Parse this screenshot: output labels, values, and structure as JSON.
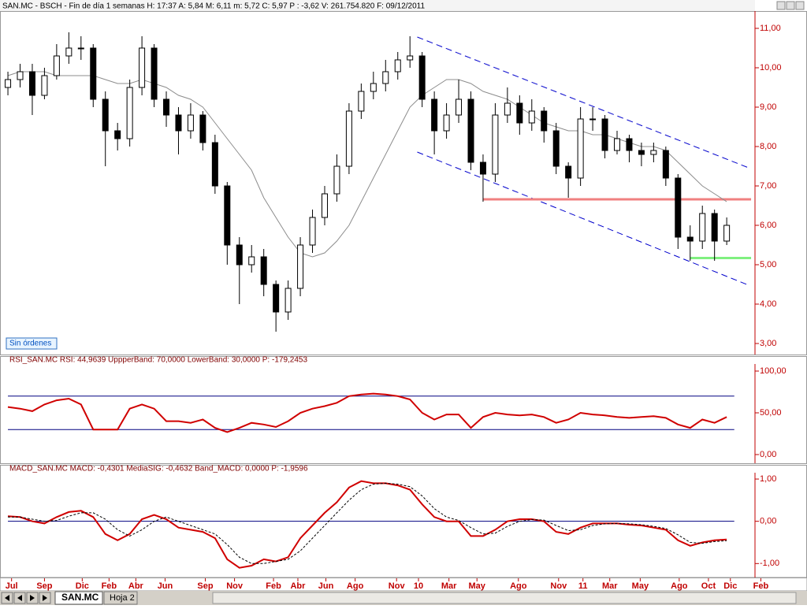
{
  "header": "SAN.MC - BSCH - Fin de día 1 semanas  H: 17:37  A: 5,84  M: 6,11  m: 5,72  C: 5,97  P : -3,62  V: 261.754.820  F: 09/12/2011",
  "status": "Sin órdenes",
  "tabs": [
    "SAN.MC",
    "Hoja 2"
  ],
  "x_axis": {
    "xlim": [
      -0.65,
      61.32
    ],
    "xticks": [
      {
        "value": 0.3,
        "label": "Jul"
      },
      {
        "value": 3,
        "label": "Sep"
      },
      {
        "value": 6.1,
        "label": "Dic"
      },
      {
        "value": 8.3,
        "label": "Feb"
      },
      {
        "value": 10.5,
        "label": "Abr"
      },
      {
        "value": 12.9,
        "label": "Jun"
      },
      {
        "value": 16.2,
        "label": "Sep"
      },
      {
        "value": 18.6,
        "label": "Nov"
      },
      {
        "value": 21.8,
        "label": "Feb"
      },
      {
        "value": 23.8,
        "label": "Abr"
      },
      {
        "value": 26.1,
        "label": "Jun"
      },
      {
        "value": 28.5,
        "label": "Ago"
      },
      {
        "value": 31.9,
        "label": "Nov"
      },
      {
        "value": 33.7,
        "label": "10"
      },
      {
        "value": 36.2,
        "label": "Mar"
      },
      {
        "value": 38.5,
        "label": "May"
      },
      {
        "value": 41.9,
        "label": "Ago"
      },
      {
        "value": 45.2,
        "label": "Nov"
      },
      {
        "value": 47.2,
        "label": "11"
      },
      {
        "value": 49.4,
        "label": "Mar"
      },
      {
        "value": 51.9,
        "label": "May"
      },
      {
        "value": 55.1,
        "label": "Ago"
      },
      {
        "value": 57.5,
        "label": "Oct"
      },
      {
        "value": 59.3,
        "label": "Dic"
      },
      {
        "value": 61.8,
        "label": "Feb"
      }
    ]
  },
  "chart_data": [
    {
      "type": "candlestick",
      "open": [
        9.5,
        9.7,
        9.9,
        9.3,
        9.8,
        10.3,
        10.5,
        10.5,
        9.2,
        8.4,
        8.2,
        9.5,
        10.5,
        9.2,
        8.8,
        8.4,
        8.8,
        8.1,
        7.0,
        5.5,
        5.0,
        5.2,
        4.5,
        3.8,
        4.4,
        5.5,
        6.2,
        6.8,
        7.5,
        8.9,
        9.4,
        9.6,
        9.9,
        10.2,
        10.3,
        9.2,
        8.4,
        8.8,
        9.2,
        7.6,
        7.3,
        8.8,
        9.1,
        8.6,
        8.9,
        8.4,
        7.5,
        7.2,
        8.7,
        8.7,
        7.9,
        8.2,
        7.9,
        7.8,
        7.9,
        7.2,
        5.7,
        5.6,
        6.3,
        5.6
      ],
      "high": [
        9.9,
        10.1,
        10.1,
        10.0,
        10.6,
        10.9,
        10.8,
        10.6,
        9.4,
        8.6,
        9.7,
        10.8,
        10.6,
        9.4,
        9.0,
        9.1,
        8.9,
        8.3,
        7.1,
        5.7,
        5.5,
        5.4,
        4.6,
        4.6,
        5.7,
        6.4,
        7.0,
        7.8,
        9.1,
        9.6,
        9.9,
        10.2,
        10.4,
        10.8,
        10.4,
        9.4,
        9.1,
        9.7,
        9.4,
        7.8,
        9.1,
        9.5,
        9.3,
        9.2,
        9.0,
        8.6,
        7.6,
        9.0,
        9.0,
        8.8,
        8.4,
        8.3,
        8.1,
        8.1,
        8.0,
        7.3,
        6.0,
        6.5,
        6.4,
        6.2
      ],
      "low": [
        9.3,
        9.5,
        8.8,
        9.2,
        9.7,
        10.1,
        10.2,
        9.0,
        7.5,
        7.9,
        8.0,
        9.3,
        9.0,
        8.5,
        7.8,
        8.2,
        7.9,
        6.8,
        5.0,
        4.0,
        4.8,
        4.2,
        3.3,
        3.6,
        4.2,
        5.3,
        6.0,
        6.6,
        7.3,
        8.7,
        9.2,
        9.4,
        9.7,
        10.0,
        9.0,
        7.8,
        8.2,
        8.6,
        7.4,
        6.6,
        7.1,
        8.6,
        8.3,
        8.4,
        8.1,
        7.3,
        6.7,
        7.0,
        8.4,
        7.7,
        7.8,
        7.6,
        7.5,
        7.6,
        7.0,
        5.4,
        5.1,
        5.4,
        5.1,
        5.5
      ],
      "close": [
        9.7,
        9.9,
        9.3,
        9.8,
        10.3,
        10.5,
        10.5,
        9.2,
        8.4,
        8.2,
        9.5,
        10.5,
        9.2,
        8.8,
        8.4,
        8.8,
        8.1,
        7.0,
        5.5,
        5.0,
        5.2,
        4.5,
        3.8,
        4.4,
        5.5,
        6.2,
        6.8,
        7.5,
        8.9,
        9.4,
        9.6,
        9.9,
        10.2,
        10.3,
        9.2,
        8.4,
        8.8,
        9.2,
        7.6,
        7.3,
        8.8,
        9.1,
        8.6,
        8.9,
        8.4,
        7.5,
        7.2,
        8.7,
        8.7,
        7.9,
        8.2,
        7.9,
        7.8,
        7.9,
        7.2,
        5.7,
        5.6,
        6.3,
        5.6,
        6.0
      ],
      "series": [
        {
          "color": "#8c8c8c",
          "values": [
            9.8,
            9.9,
            9.9,
            9.9,
            9.8,
            9.8,
            9.8,
            9.8,
            9.7,
            9.6,
            9.6,
            9.7,
            9.6,
            9.5,
            9.3,
            9.2,
            9.0,
            8.6,
            8.2,
            7.8,
            7.4,
            6.7,
            6.2,
            5.7,
            5.3,
            5.2,
            5.3,
            5.6,
            6.0,
            6.6,
            7.2,
            7.8,
            8.4,
            9.0,
            9.3,
            9.5,
            9.7,
            9.7,
            9.6,
            9.4,
            9.3,
            9.2,
            9.0,
            8.8,
            8.6,
            8.5,
            8.4,
            8.4,
            8.3,
            8.3,
            8.2,
            8.1,
            8.0,
            8.0,
            7.9,
            7.6,
            7.3,
            7.0,
            6.8,
            6.6
          ]
        }
      ],
      "annotations": [
        {
          "color": "#0000cc",
          "dash": true,
          "x": [
            33.6,
            60.8
          ],
          "y": [
            10.78,
            7.46
          ]
        },
        {
          "color": "#0000cc",
          "dash": true,
          "x": [
            33.6,
            60.8
          ],
          "y": [
            7.86,
            4.48
          ]
        },
        {
          "color": "#f08080",
          "x": [
            39,
            61
          ],
          "y": [
            6.66,
            6.66
          ]
        },
        {
          "color": "#80f080",
          "x": [
            56,
            61
          ],
          "y": [
            5.17,
            5.17
          ]
        }
      ],
      "ylim": [
        2.72,
        11.44
      ],
      "yticks": [
        {
          "value": 3,
          "label": "3,00"
        },
        {
          "value": 4,
          "label": "4,00"
        },
        {
          "value": 5,
          "label": "5,00"
        },
        {
          "value": 6,
          "label": "6,00"
        },
        {
          "value": 7,
          "label": "7,00"
        },
        {
          "value": 8,
          "label": "8,00"
        },
        {
          "value": 9,
          "label": "9,00"
        },
        {
          "value": 10,
          "label": "10,00"
        },
        {
          "value": 11,
          "label": "11,00"
        }
      ]
    },
    {
      "type": "line",
      "title": "RSI_SAN.MC  RSI: 44,9639  UppperBand: 70,0000  LowerBand: 30,0000  P: -179,2453",
      "series": [
        {
          "color": "#d00000",
          "values": [
            57,
            55,
            52,
            60,
            65,
            67,
            60,
            30,
            30,
            30,
            55,
            60,
            55,
            40,
            40,
            38,
            42,
            32,
            27,
            32,
            38,
            36,
            33,
            40,
            50,
            55,
            58,
            62,
            70,
            72,
            73,
            72,
            70,
            66,
            50,
            42,
            48,
            48,
            32,
            45,
            50,
            48,
            47,
            48,
            45,
            38,
            42,
            50,
            48,
            47,
            45,
            44,
            45,
            46,
            44,
            36,
            32,
            42,
            38,
            45
          ]
        }
      ],
      "hlines": [
        70,
        30
      ],
      "hline_color": "#000080",
      "ylim": [
        -10.4,
        108.5
      ],
      "yticks": [
        {
          "value": 0,
          "label": "0,00"
        },
        {
          "value": 50,
          "label": "50,00"
        },
        {
          "value": 100,
          "label": "100,00"
        }
      ]
    },
    {
      "type": "line",
      "title": "MACD_SAN.MC  MACD: -0,4301  MediaSIG: -0,4632  Band_MACD: 0,0000  P: -1,9596",
      "series": [
        {
          "color": "#d00000",
          "values": [
            0.12,
            0.1,
            0,
            -0.05,
            0.1,
            0.22,
            0.25,
            0.1,
            -0.3,
            -0.45,
            -0.3,
            0.05,
            0.15,
            0.05,
            -0.15,
            -0.2,
            -0.25,
            -0.4,
            -0.9,
            -1.1,
            -1.05,
            -0.9,
            -0.95,
            -0.85,
            -0.4,
            -0.1,
            0.2,
            0.45,
            0.8,
            0.95,
            0.9,
            0.9,
            0.85,
            0.75,
            0.4,
            0.1,
            0,
            0,
            -0.35,
            -0.35,
            -0.2,
            0,
            0.05,
            0.05,
            0,
            -0.25,
            -0.3,
            -0.15,
            -0.05,
            -0.05,
            -0.05,
            -0.08,
            -0.1,
            -0.15,
            -0.2,
            -0.45,
            -0.58,
            -0.5,
            -0.45,
            -0.43
          ]
        },
        {
          "color": "#000000",
          "dash": true,
          "values": [
            0.1,
            0.1,
            0.05,
            0,
            0.02,
            0.12,
            0.2,
            0.2,
            0.05,
            -0.2,
            -0.35,
            -0.2,
            0,
            0.1,
            0,
            -0.1,
            -0.2,
            -0.3,
            -0.55,
            -0.85,
            -1,
            -1,
            -0.95,
            -0.9,
            -0.7,
            -0.4,
            -0.1,
            0.2,
            0.5,
            0.75,
            0.88,
            0.9,
            0.88,
            0.82,
            0.6,
            0.3,
            0.1,
            0.02,
            -0.15,
            -0.3,
            -0.28,
            -0.12,
            0,
            0.04,
            0.03,
            -0.1,
            -0.22,
            -0.2,
            -0.1,
            -0.06,
            -0.05,
            -0.06,
            -0.08,
            -0.12,
            -0.17,
            -0.32,
            -0.5,
            -0.52,
            -0.48,
            -0.46
          ]
        }
      ],
      "hlines": [
        0
      ],
      "hline_color": "#000080",
      "ylim": [
        -1.33,
        1.15
      ],
      "yticks": [
        {
          "value": -1,
          "label": "-1,00"
        },
        {
          "value": 0,
          "label": "0,00"
        },
        {
          "value": 1,
          "label": "1,00"
        }
      ]
    }
  ]
}
